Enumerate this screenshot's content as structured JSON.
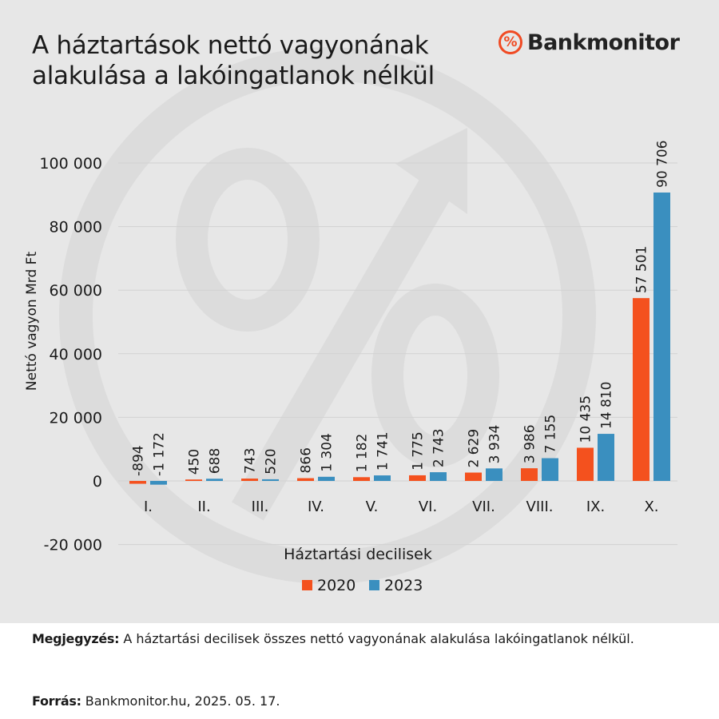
{
  "header": {
    "title_line1": "A háztartások nettó vagyonának",
    "title_line2": "alakulása a lakóingatlanok nélkül",
    "brand_icon_symbol": "%",
    "brand_name": "Bankmonitor",
    "brand_icon": "percent-circle-icon"
  },
  "colors": {
    "series_2020": "#f4511e",
    "series_2023": "#3a8fbf",
    "background": "#e7e7e7",
    "brand": "#f04a23"
  },
  "chart_data": {
    "type": "bar",
    "title": "",
    "xlabel": "Háztartási decilisek",
    "ylabel": "Nettó vagyon Mrd Ft",
    "ylim": [
      -20000,
      100000
    ],
    "yticks": [
      -20000,
      0,
      20000,
      40000,
      60000,
      80000,
      100000
    ],
    "ytick_labels": [
      "-20 000",
      "0",
      "20 000",
      "40 000",
      "60 000",
      "80 000",
      "100 000"
    ],
    "grid": true,
    "legend_position": "bottom",
    "categories": [
      "I.",
      "II.",
      "III.",
      "IV.",
      "V.",
      "VI.",
      "VII.",
      "VIII.",
      "IX.",
      "X."
    ],
    "series": [
      {
        "name": "2020",
        "values": [
          -894,
          450,
          743,
          866,
          1182,
          1775,
          2629,
          3986,
          10435,
          57501
        ],
        "labels": [
          "-894",
          "450",
          "743",
          "866",
          "1 182",
          "1 775",
          "2 629",
          "3 986",
          "10 435",
          "57 501"
        ]
      },
      {
        "name": "2023",
        "values": [
          -1172,
          688,
          520,
          1304,
          1741,
          2743,
          3934,
          7155,
          14810,
          90706
        ],
        "labels": [
          "-1 172",
          "688",
          "520",
          "1 304",
          "1 741",
          "2 743",
          "3 934",
          "7 155",
          "14 810",
          "90 706"
        ]
      }
    ]
  },
  "footer": {
    "note_label": "Megjegyzés:",
    "note_text": " A háztartási decilisek összes nettó vagyonának alakulása lakóingatlanok nélkül.",
    "source_label": "Forrás:",
    "source_text": " Bankmonitor.hu, 2025. 05. 17."
  }
}
